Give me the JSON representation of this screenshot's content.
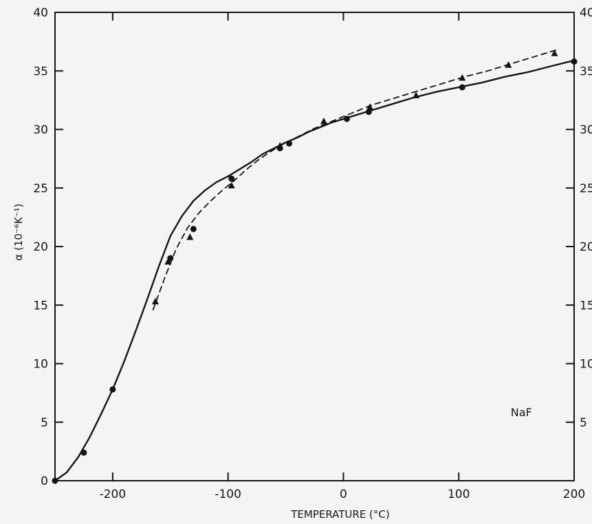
{
  "chart_data": {
    "type": "line",
    "xlabel": "TEMPERATURE (°C)",
    "ylabel": "α (10⁻⁶K⁻¹)",
    "xlim": [
      -250,
      200
    ],
    "ylim": [
      0,
      40
    ],
    "x_ticks": [
      -200,
      -100,
      0,
      100,
      200
    ],
    "x_tick_labels": [
      "-200",
      "-100",
      "0",
      "100",
      "200"
    ],
    "y_ticks": [
      0,
      5,
      10,
      15,
      20,
      25,
      30,
      35,
      40
    ],
    "y_tick_labels": [
      "0",
      "5",
      "10",
      "15",
      "20",
      "25",
      "30",
      "35",
      "40"
    ],
    "grid": false,
    "annotations": [
      {
        "text": "NaF",
        "x": 145,
        "y": 5.5
      }
    ],
    "series": [
      {
        "style": "solid",
        "marker": "circle",
        "color": "#141414",
        "curve_x": [
          -250,
          -240,
          -230,
          -220,
          -210,
          -200,
          -190,
          -180,
          -170,
          -160,
          -150,
          -140,
          -130,
          -120,
          -110,
          -100,
          -90,
          -80,
          -70,
          -60,
          -50,
          -40,
          -30,
          -20,
          -10,
          0,
          20,
          40,
          60,
          80,
          100,
          120,
          140,
          160,
          180,
          200
        ],
        "curve_y": [
          0,
          0.7,
          2.0,
          3.7,
          5.7,
          7.8,
          10.2,
          12.8,
          15.5,
          18.3,
          20.9,
          22.6,
          23.9,
          24.8,
          25.5,
          26.0,
          26.6,
          27.2,
          27.9,
          28.4,
          28.9,
          29.3,
          29.8,
          30.2,
          30.6,
          30.9,
          31.5,
          32.1,
          32.7,
          33.2,
          33.6,
          34.0,
          34.5,
          34.9,
          35.4,
          35.9
        ],
        "points_x": [
          -250,
          -225,
          -200,
          -150,
          -130,
          -97,
          -55,
          -47,
          3,
          22,
          103,
          200
        ],
        "points_y": [
          0,
          2.4,
          7.8,
          19.0,
          21.5,
          25.8,
          28.4,
          28.8,
          30.9,
          31.5,
          33.6,
          35.8
        ]
      },
      {
        "style": "dashed",
        "marker": "triangle",
        "color": "#141414",
        "curve_x": [
          -165,
          -155,
          -145,
          -135,
          -125,
          -115,
          -105,
          -95,
          -85,
          -75,
          -65,
          -55,
          -45,
          -35,
          -25,
          -15,
          -5,
          5,
          15,
          25,
          45,
          65,
          85,
          105,
          125,
          145,
          165,
          185
        ],
        "curve_y": [
          14.6,
          17.3,
          19.8,
          21.6,
          22.9,
          23.9,
          24.8,
          25.6,
          26.5,
          27.3,
          28.0,
          28.6,
          29.1,
          29.6,
          30.1,
          30.5,
          30.9,
          31.3,
          31.7,
          32.1,
          32.7,
          33.3,
          33.9,
          34.5,
          35.0,
          35.6,
          36.2,
          36.8
        ],
        "points_x": [
          -163,
          -152,
          -133,
          -97,
          -55,
          -17,
          23,
          63,
          103,
          143,
          183
        ],
        "points_y": [
          15.3,
          18.7,
          20.8,
          25.2,
          28.6,
          30.7,
          31.9,
          32.9,
          34.4,
          35.5,
          36.5
        ]
      }
    ]
  }
}
